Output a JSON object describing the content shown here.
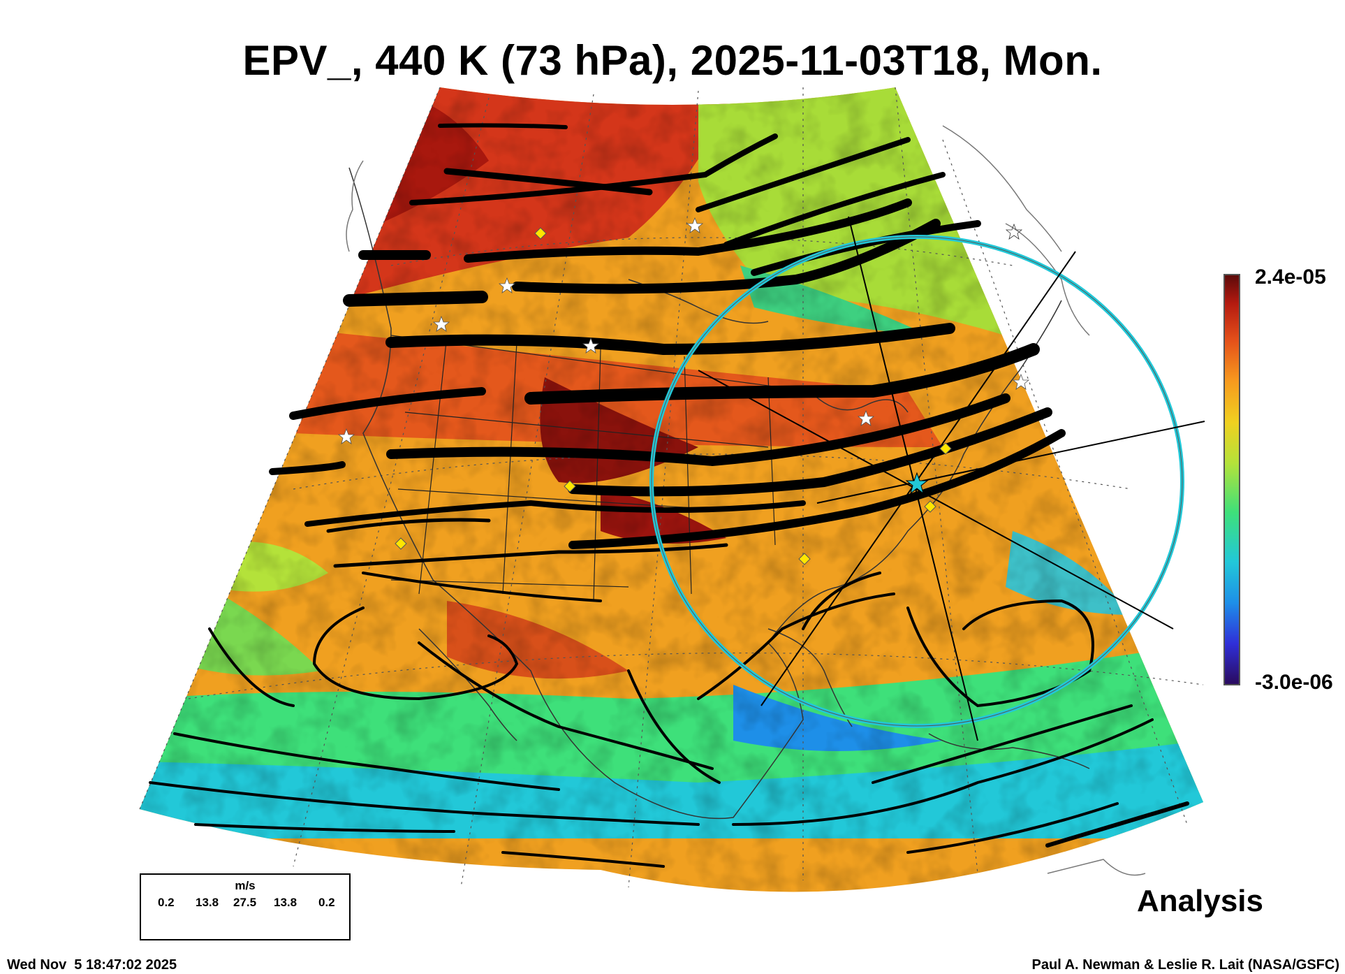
{
  "title": "EPV_, 440 K (73 hPa), 2025-11-03T18, Mon.",
  "colorbar": {
    "max_label": "2.4e-05",
    "min_label": "-3.0e-06",
    "colors": [
      "#2a0a5c",
      "#2f2fd8",
      "#1e8fe8",
      "#22c8d8",
      "#3ee07a",
      "#b4e23a",
      "#f0d020",
      "#f79a1e",
      "#e4501a",
      "#b41a10",
      "#5a0a0a"
    ]
  },
  "wind_scale": {
    "unit": "m/s",
    "labels": [
      "0.2",
      "13.8",
      "27.5",
      "13.8",
      "0.2"
    ]
  },
  "label_analysis": "Analysis",
  "timestamp": "Wed Nov  5 18:47:02 2025",
  "credit": "Paul A. Newman & Leslie R. Lait (NASA/GSFC)",
  "markers": {
    "diamond_color": "#ffe600",
    "star_color": "#ffffff",
    "target_color": "#22c8d8"
  }
}
